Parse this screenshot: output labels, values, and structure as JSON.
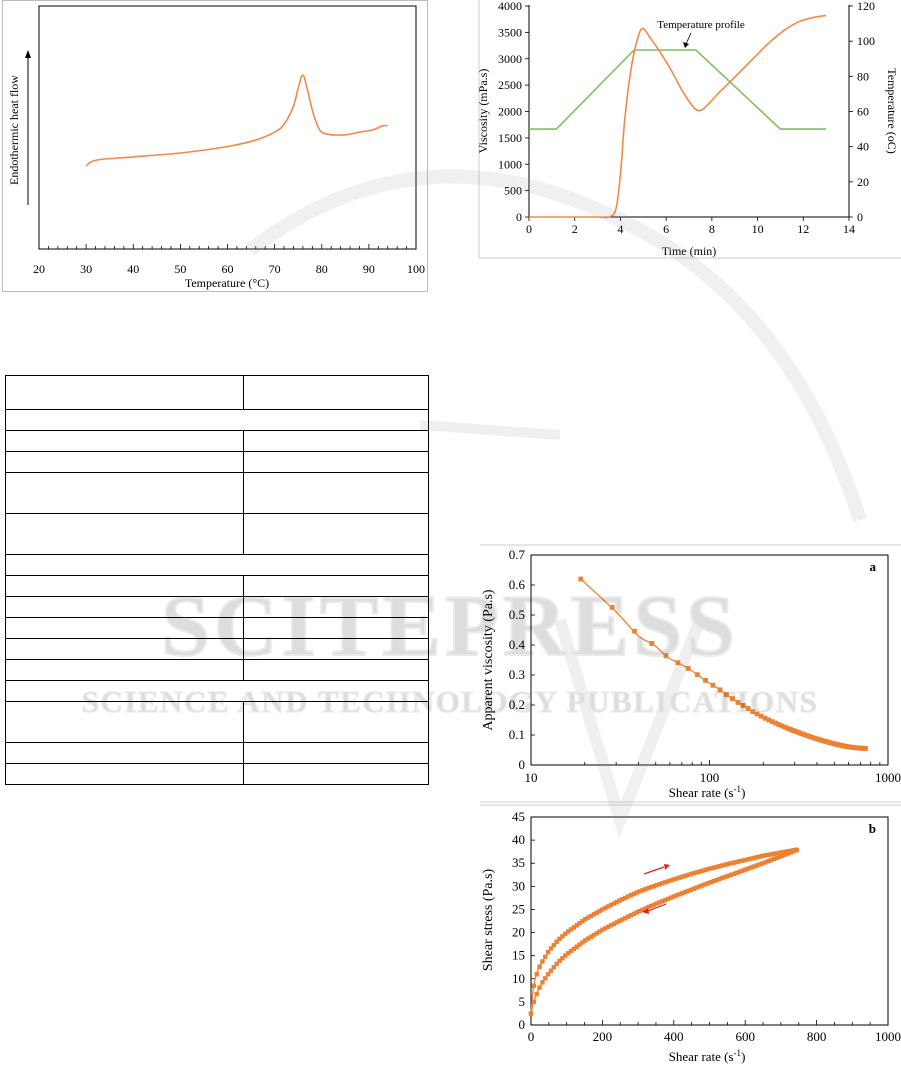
{
  "dsc": {
    "xlabel": "Temperature (°C)",
    "ylabel": "Endothermic heat flow",
    "xticks": [
      "20",
      "30",
      "40",
      "50",
      "60",
      "70",
      "80",
      "90",
      "100"
    ],
    "xlim": [
      20,
      100
    ]
  },
  "rva": {
    "xlabel": "Time (min)",
    "ylabel_left": "Viscosity (mPa.s)",
    "ylabel_right": "Temperature (oC)",
    "annotation": "Temperature profile",
    "xticks": [
      "0",
      "2",
      "4",
      "6",
      "8",
      "10",
      "12",
      "14"
    ],
    "yticks_left": [
      "0",
      "500",
      "1000",
      "1500",
      "2000",
      "2500",
      "3000",
      "3500",
      "4000"
    ],
    "yticks_right": [
      "0",
      "20",
      "40",
      "60",
      "80",
      "100",
      "120"
    ]
  },
  "flow": {
    "panel_label": "a",
    "xlabel_main": "Shear rate (s",
    "xlabel_sup": "-1",
    "xlabel_end": ")",
    "ylabel": "Apparent viscosity (Pa.s)",
    "xticks": [
      "10",
      "100",
      "1000"
    ],
    "yticks": [
      "0",
      "0.1",
      "0.2",
      "0.3",
      "0.4",
      "0.5",
      "0.6",
      "0.7"
    ]
  },
  "stress": {
    "panel_label": "b",
    "xlabel_main": "Shear rate (s",
    "xlabel_sup": "-1",
    "xlabel_end": ")",
    "ylabel": "Shear stress (Pa.s)",
    "xticks": [
      "0",
      "200",
      "400",
      "600",
      "800",
      "1000"
    ],
    "yticks": [
      "0",
      "5",
      "10",
      "15",
      "20",
      "25",
      "30",
      "35",
      "40",
      "45"
    ]
  },
  "watermark": {
    "main": "SCITEPRESS",
    "sub": "SCIENCE AND TECHNOLOGY PUBLICATIONS"
  },
  "chart_data": [
    {
      "type": "line",
      "xlabel": "Temperature (°C)",
      "ylabel": "Endothermic heat flow",
      "xlim": [
        20,
        100
      ],
      "series": [
        {
          "x": [
            30,
            31,
            33,
            40,
            50,
            60,
            66,
            70,
            72,
            74,
            75,
            76,
            77,
            78,
            79,
            80,
            82,
            85,
            88,
            91,
            93,
            94
          ],
          "y": [
            0.0,
            0.03,
            0.05,
            0.07,
            0.1,
            0.15,
            0.2,
            0.26,
            0.32,
            0.46,
            0.6,
            0.7,
            0.58,
            0.43,
            0.32,
            0.26,
            0.24,
            0.24,
            0.26,
            0.28,
            0.31,
            0.31
          ]
        }
      ],
      "grid": false
    },
    {
      "type": "line",
      "xlabel": "Time (min)",
      "ylabel": "Viscosity (mPa.s)",
      "ylabel_right": "Temperature (oC)",
      "xlim": [
        0,
        14
      ],
      "ylim": [
        0,
        4000
      ],
      "ylim_right": [
        0,
        120
      ],
      "series": [
        {
          "axis": "left",
          "x": [
            0,
            1,
            2,
            3,
            3.5,
            3.8,
            4.0,
            4.2,
            4.5,
            4.8,
            5.0,
            5.3,
            5.7,
            6.2,
            6.7,
            7.2,
            7.5,
            7.8,
            8.3,
            9.0,
            9.8,
            10.5,
            11.2,
            11.8,
            12.4,
            13.0
          ],
          "y": [
            0,
            0,
            0,
            0,
            0,
            150,
            800,
            1900,
            2900,
            3450,
            3570,
            3400,
            3150,
            2800,
            2400,
            2080,
            2020,
            2120,
            2350,
            2650,
            3000,
            3300,
            3550,
            3700,
            3780,
            3820
          ]
        },
        {
          "axis": "right",
          "x": [
            0,
            0.3,
            1.2,
            4.6,
            7.3,
            11.0,
            13.0
          ],
          "y": [
            50,
            50,
            50,
            95,
            95,
            50,
            50
          ]
        }
      ],
      "grid": false
    },
    {
      "type": "scatter",
      "xlabel": "Shear rate (s-1)",
      "ylabel": "Apparent viscosity (Pa.s)",
      "xscale": "log",
      "xlim": [
        10,
        1000
      ],
      "ylim": [
        0,
        0.7
      ],
      "series": [
        {
          "x": [
            19,
            30,
            40,
            49,
            58,
            67,
            77,
            86,
            96,
            105,
            115,
            124,
            134,
            143,
            153,
            163,
            172,
            182,
            191,
            201,
            220,
            240,
            260,
            280,
            300,
            330,
            360,
            390,
            420,
            450,
            490,
            530,
            570,
            610,
            650,
            700,
            750
          ],
          "y": [
            0.62,
            0.51,
            0.43,
            0.4,
            0.36,
            0.34,
            0.32,
            0.3,
            0.28,
            0.265,
            0.25,
            0.235,
            0.222,
            0.21,
            0.2,
            0.19,
            0.18,
            0.172,
            0.165,
            0.158,
            0.147,
            0.137,
            0.128,
            0.12,
            0.113,
            0.104,
            0.096,
            0.089,
            0.083,
            0.078,
            0.072,
            0.067,
            0.063,
            0.06,
            0.058,
            0.056,
            0.055
          ]
        }
      ],
      "grid": false
    },
    {
      "type": "scatter",
      "xlabel": "Shear rate (s-1)",
      "ylabel": "Shear stress (Pa.s)",
      "xlim": [
        0,
        1000
      ],
      "ylim": [
        0,
        45
      ],
      "series": [
        {
          "name": "up",
          "x": [
            0,
            5,
            10,
            20,
            30,
            50,
            75,
            100,
            150,
            200,
            250,
            300,
            350,
            400,
            450,
            500,
            550,
            600,
            650,
            700,
            750
          ],
          "y": [
            2.5,
            7.0,
            9.5,
            12.0,
            13.5,
            16.0,
            18.3,
            20.0,
            22.8,
            25.0,
            27.0,
            28.8,
            30.2,
            31.5,
            32.7,
            33.8,
            34.8,
            35.7,
            36.6,
            37.3,
            38.0
          ]
        },
        {
          "name": "down",
          "x": [
            750,
            700,
            650,
            600,
            550,
            500,
            450,
            400,
            350,
            300,
            250,
            200,
            150,
            100,
            75,
            50,
            30,
            20,
            10,
            5,
            0
          ],
          "y": [
            38.0,
            36.5,
            35.0,
            33.6,
            32.2,
            30.8,
            29.3,
            27.8,
            26.2,
            24.5,
            22.6,
            20.6,
            18.2,
            15.3,
            13.5,
            11.2,
            9.0,
            7.5,
            5.5,
            4.2,
            2.5
          ]
        }
      ],
      "grid": false
    }
  ]
}
